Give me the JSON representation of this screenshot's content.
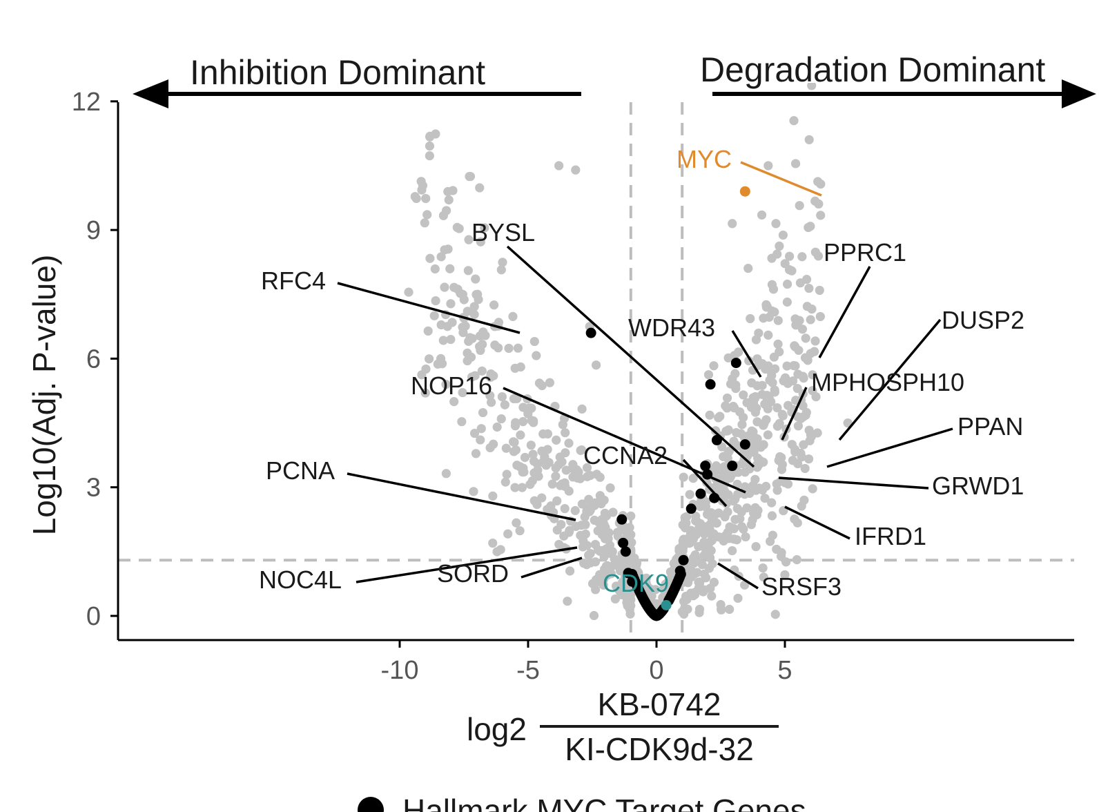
{
  "chart_data": {
    "type": "scatter",
    "title": "",
    "xlim": [
      -10.5,
      8.1
    ],
    "ylim": [
      -0.55,
      12.1
    ],
    "x_ticks": [
      -10,
      -5,
      0,
      5
    ],
    "x_tick_labels": [
      "-10",
      "-5",
      "0",
      "5"
    ],
    "y_ticks": [
      0,
      3,
      6,
      9,
      12
    ],
    "y_tick_labels": [
      "0",
      "3",
      "6",
      "9",
      "12"
    ],
    "ylabel": "Log10(Adj. P-value)",
    "xlabel": {
      "prefix": "log2",
      "numerator": "KB-0742",
      "denominator": "KI-CDK9d-32"
    },
    "direction_labels": {
      "left": "Inhibition Dominant",
      "right": "Degradation Dominant"
    },
    "threshold_lines": {
      "vertical": [
        -1,
        1
      ],
      "horizontal": 1.3
    },
    "legend": {
      "position": "bottom",
      "label": "Hallmark MYC Target Genes"
    },
    "colors": {
      "background_genes": "#c2c2c2",
      "myc_targets": "#000000",
      "myc": "#e08a2e",
      "cdk9": "#2a8f8f",
      "threshold": "#bdbdbd",
      "axis": "#000000"
    },
    "series": [
      {
        "name": "Hallmark MYC Target Genes",
        "color": "#000000",
        "points": [
          {
            "x": -2.55,
            "y": 6.6
          },
          {
            "x": 1.9,
            "y": 3.5
          },
          {
            "x": 2.1,
            "y": 5.4
          },
          {
            "x": 3.1,
            "y": 5.9
          },
          {
            "x": 2.35,
            "y": 4.1
          },
          {
            "x": 3.45,
            "y": 4.0
          },
          {
            "x": 2.95,
            "y": 3.5
          },
          {
            "x": 1.98,
            "y": 3.3
          },
          {
            "x": 1.72,
            "y": 2.85
          },
          {
            "x": 1.35,
            "y": 2.5
          },
          {
            "x": 2.25,
            "y": 2.75
          },
          {
            "x": -1.35,
            "y": 2.25
          },
          {
            "x": -1.3,
            "y": 1.7
          },
          {
            "x": -1.2,
            "y": 1.5
          },
          {
            "x": -1.1,
            "y": 1.0
          },
          {
            "x": -0.95,
            "y": 0.8
          },
          {
            "x": 0.92,
            "y": 1.05
          },
          {
            "x": 1.05,
            "y": 1.3
          }
        ]
      }
    ],
    "highlighted": [
      {
        "label": "MYC",
        "x": 3.45,
        "y": 9.9,
        "color": "#e08a2e"
      },
      {
        "label": "CDK9",
        "x": 0.38,
        "y": 0.25,
        "color": "#2a8f8f"
      }
    ],
    "annotations": [
      {
        "label": "MYC"
      },
      {
        "label": "BYSL"
      },
      {
        "label": "PPRC1"
      },
      {
        "label": "RFC4"
      },
      {
        "label": "WDR43"
      },
      {
        "label": "DUSP2"
      },
      {
        "label": "MPHOSPH10"
      },
      {
        "label": "NOP16"
      },
      {
        "label": "PPAN"
      },
      {
        "label": "CCNA2"
      },
      {
        "label": "PCNA"
      },
      {
        "label": "GRWD1"
      },
      {
        "label": "IFRD1"
      },
      {
        "label": "SRSF3"
      },
      {
        "label": "SORD"
      },
      {
        "label": "NOC4L"
      },
      {
        "label": "CDK9"
      }
    ]
  }
}
